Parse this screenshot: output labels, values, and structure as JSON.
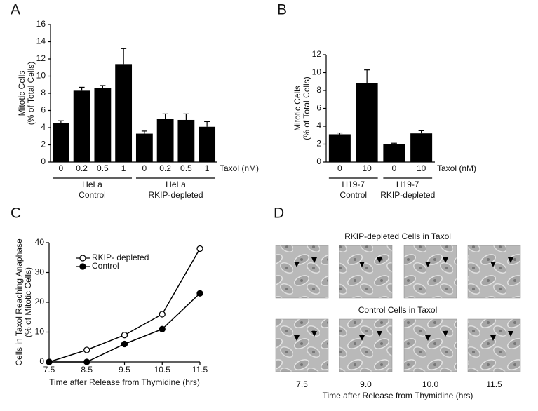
{
  "chart_data": [
    {
      "type": "bar",
      "panel": "A",
      "color": "#000000",
      "ylabel": [
        "Mitotic Cells",
        "(% of Total Cells)"
      ],
      "xlabel": "Taxol (nM)",
      "categories": [
        "0",
        "0.2",
        "0.5",
        "1",
        "0",
        "0.2",
        "0.5",
        "1"
      ],
      "values": [
        4.5,
        8.3,
        8.6,
        11.4,
        3.3,
        5.0,
        4.9,
        4.1
      ],
      "errors": [
        0.3,
        0.4,
        0.3,
        1.8,
        0.3,
        0.6,
        0.7,
        0.6
      ],
      "groups": [
        [
          "HeLa",
          "Control"
        ],
        [
          "HeLa",
          "RKIP-depleted"
        ]
      ],
      "ylim": [
        0,
        16
      ],
      "yticks": [
        0,
        2,
        4,
        6,
        8,
        10,
        12,
        14,
        16
      ]
    },
    {
      "type": "bar",
      "panel": "B",
      "color": "#000000",
      "ylabel": [
        "Mitotic Cells",
        "(% of Total Cells)"
      ],
      "xlabel": "Taxol (nM)",
      "categories": [
        "0",
        "10",
        "0",
        "10"
      ],
      "values": [
        3.1,
        8.8,
        2.0,
        3.2
      ],
      "errors": [
        0.15,
        1.5,
        0.1,
        0.3
      ],
      "groups": [
        [
          "H19-7",
          "Control"
        ],
        [
          "H19-7",
          "RKIP-depleted"
        ]
      ],
      "ylim": [
        0,
        12
      ],
      "yticks": [
        0,
        2,
        4,
        6,
        8,
        10,
        12
      ]
    },
    {
      "type": "line",
      "panel": "C",
      "ylabel": [
        "Cells in Taxol Reaching Anaphase",
        "(% of Mitotic Cells)"
      ],
      "xlabel": "Time after Release from Thymidine (hrs)",
      "x": [
        7.5,
        8.5,
        9.5,
        10.5,
        11.5
      ],
      "series": [
        {
          "name": "RKIP- depleted",
          "color": "#000000",
          "marker": "open",
          "values": [
            0,
            4,
            9,
            16,
            38
          ]
        },
        {
          "name": "Control",
          "color": "#000000",
          "marker": "filled",
          "values": [
            0,
            0,
            6,
            11,
            23
          ]
        }
      ],
      "xlim": [
        7.5,
        11.5
      ],
      "xticks": [
        7.5,
        8.5,
        9.5,
        10.5,
        11.5
      ],
      "ylim": [
        0,
        40
      ],
      "yticks": [
        0,
        10,
        20,
        30,
        40
      ],
      "legend": "upper-left"
    }
  ],
  "micrographs": {
    "panel": "D",
    "rows": [
      "RKIP-depleted Cells in Taxol",
      "Control Cells in Taxol"
    ],
    "times": [
      "7.5",
      "9.0",
      "10.0",
      "11.5"
    ],
    "xlabel": "Time after Release from Thymidine (hrs)"
  }
}
